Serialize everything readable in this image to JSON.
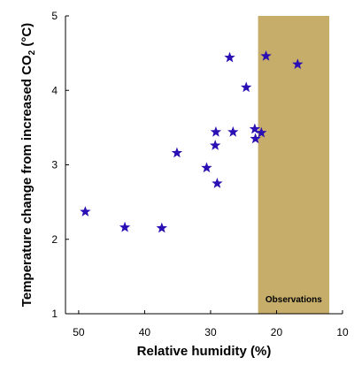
{
  "chart_data": {
    "type": "scatter",
    "xlabel": "Relative humidity (%)",
    "ylabel_main": "Temperature change from increased CO",
    "ylabel_sub": "2",
    "ylabel_unit": " (°C)",
    "xlim": [
      10,
      52
    ],
    "x_reversed": true,
    "ylim": [
      1,
      5
    ],
    "xticks": [
      50,
      40,
      30,
      20,
      10
    ],
    "yticks": [
      1,
      2,
      3,
      4,
      5
    ],
    "grid": false,
    "marker": "star",
    "marker_color": "#2a0fb4",
    "band": {
      "x_from": 22.8,
      "x_to": 12.0,
      "color": "#c6ad6a",
      "label": "Observations"
    },
    "points": [
      {
        "x": 49.0,
        "y": 2.37
      },
      {
        "x": 43.0,
        "y": 2.16
      },
      {
        "x": 37.4,
        "y": 2.15
      },
      {
        "x": 35.1,
        "y": 3.16
      },
      {
        "x": 30.6,
        "y": 2.96
      },
      {
        "x": 29.0,
        "y": 2.75
      },
      {
        "x": 29.3,
        "y": 3.26
      },
      {
        "x": 29.2,
        "y": 3.44
      },
      {
        "x": 26.6,
        "y": 3.44
      },
      {
        "x": 27.1,
        "y": 4.44
      },
      {
        "x": 24.6,
        "y": 4.04
      },
      {
        "x": 23.3,
        "y": 3.48
      },
      {
        "x": 23.2,
        "y": 3.35
      },
      {
        "x": 22.3,
        "y": 3.43
      },
      {
        "x": 21.6,
        "y": 4.46
      },
      {
        "x": 16.8,
        "y": 4.35
      }
    ]
  }
}
